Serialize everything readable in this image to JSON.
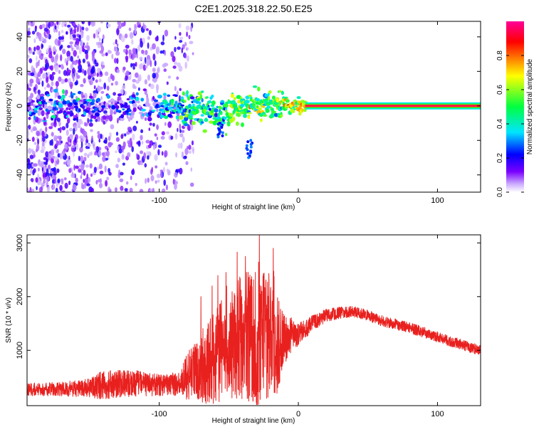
{
  "figure_title": "C2E1.2025.318.22.50.E25",
  "chart_data": [
    {
      "type": "heatmap",
      "title": "C2E1.2025.318.22.50.E25",
      "xlabel": "Height of straight line (km)",
      "ylabel": "Frequency (Hz)",
      "xlim": [
        -195,
        131
      ],
      "ylim": [
        -50,
        49
      ],
      "xticks": [
        -100,
        0,
        100
      ],
      "yticks": [
        -40,
        -20,
        0,
        20,
        40
      ],
      "colorbar": {
        "label": "Normalized spectral amplitude",
        "range": [
          0.0,
          1.0
        ],
        "ticks": [
          0.0,
          0.2,
          0.4,
          0.6,
          0.8
        ],
        "colormap": [
          "#ffffff",
          "#c9a8ff",
          "#7a00ff",
          "#0000ff",
          "#00e5ff",
          "#00ff40",
          "#ffff00",
          "#ff8000",
          "#ff0000",
          "#ff0099"
        ]
      },
      "features": {
        "noise_region_x": [
          -195,
          -85
        ],
        "main_band_x": [
          -195,
          131
        ],
        "main_band_center_hz": 0,
        "strongest_band_start_x": 5,
        "strongest_band_amplitude": 0.95,
        "side_streaks": [
          [
            -55,
            -10,
            -18
          ],
          [
            -35,
            -20,
            -30
          ]
        ]
      }
    },
    {
      "type": "line",
      "xlabel": "Height of straight line (km)",
      "ylabel": "SNR (10 * v/v)",
      "xlim": [
        -195,
        131
      ],
      "ylim": [
        -30,
        3150
      ],
      "xticks": [
        -100,
        0,
        100
      ],
      "yticks": [
        1000,
        2000,
        3000
      ],
      "series": [
        {
          "name": "SNR",
          "color": "#e8201e",
          "envelope_x": [
            -195,
            -170,
            -150,
            -140,
            -120,
            -100,
            -85,
            -80,
            -75,
            -70,
            -60,
            -50,
            -40,
            -30,
            -20,
            -15,
            -10,
            0,
            10,
            20,
            30,
            40,
            50,
            60,
            80,
            100,
            120,
            131
          ],
          "envelope_mean": [
            270,
            280,
            300,
            360,
            390,
            350,
            380,
            500,
            700,
            600,
            900,
            1100,
            1200,
            1300,
            1250,
            1100,
            1200,
            1300,
            1500,
            1650,
            1700,
            1720,
            1650,
            1550,
            1420,
            1250,
            1080,
            1000
          ],
          "envelope_noise": [
            120,
            130,
            180,
            280,
            250,
            200,
            220,
            450,
            500,
            600,
            900,
            1000,
            1200,
            1400,
            1100,
            900,
            450,
            200,
            150,
            120,
            110,
            100,
            100,
            100,
            100,
            100,
            100,
            100
          ],
          "peaks_x": [
            -28,
            -18,
            -38,
            -52,
            -62,
            -70
          ],
          "peaks_y": [
            3150,
            2900,
            2750,
            2450,
            2200,
            2000
          ]
        }
      ]
    }
  ]
}
